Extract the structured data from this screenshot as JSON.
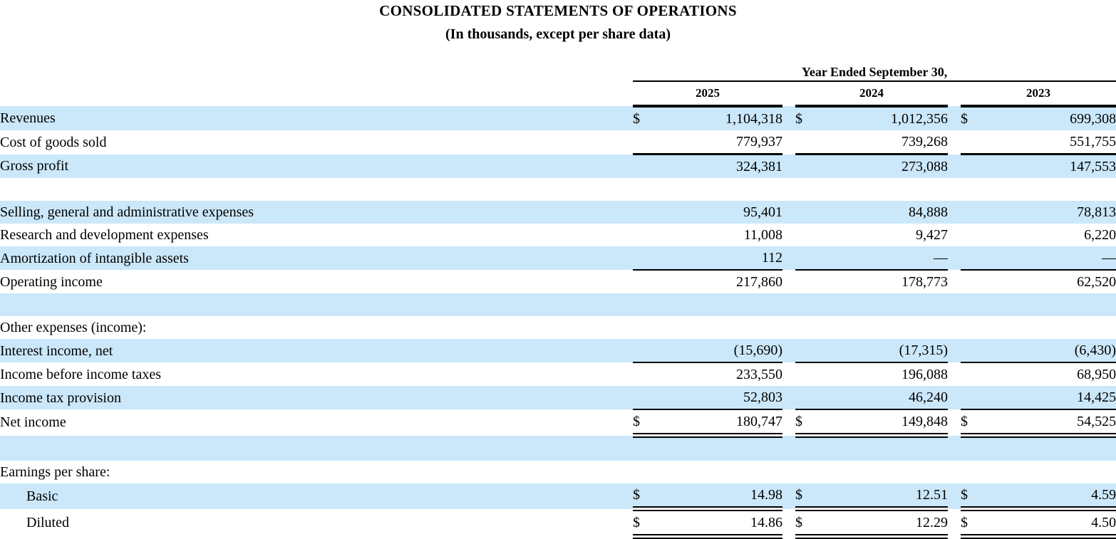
{
  "title": "CONSOLIDATED STATEMENTS OF OPERATIONS",
  "subtitle": "(In thousands, except per share data)",
  "currency_symbol": "$",
  "colors": {
    "row_highlight": "#CBE8FA",
    "rule_color": "#000000"
  },
  "table": {
    "period_header": "Year Ended September 30,",
    "years": [
      "2025",
      "2024",
      "2023"
    ],
    "rows": [
      {
        "label": "Revenues",
        "shade": "blue",
        "indent": false,
        "dollar": true,
        "values": [
          "1,104,318",
          "1,012,356",
          "699,308"
        ],
        "border": "none"
      },
      {
        "label": "Cost of goods sold",
        "shade": "white",
        "indent": false,
        "dollar": false,
        "values": [
          "779,937",
          "739,268",
          "551,755"
        ],
        "border": "thick"
      },
      {
        "label": "Gross profit",
        "shade": "blue",
        "indent": false,
        "dollar": false,
        "values": [
          "324,381",
          "273,088",
          "147,553"
        ],
        "border": "none"
      },
      {
        "spacer": true,
        "shade": "white"
      },
      {
        "label": "Selling, general and administrative expenses",
        "shade": "blue",
        "indent": false,
        "dollar": false,
        "values": [
          "95,401",
          "84,888",
          "78,813"
        ],
        "border": "none"
      },
      {
        "label": "Research and development expenses",
        "shade": "white",
        "indent": false,
        "dollar": false,
        "values": [
          "11,008",
          "9,427",
          "6,220"
        ],
        "border": "none"
      },
      {
        "label": "Amortization of intangible assets",
        "shade": "blue",
        "indent": false,
        "dollar": false,
        "values": [
          "112",
          "—",
          "—"
        ],
        "border": "thin"
      },
      {
        "label": "Operating income",
        "shade": "white",
        "indent": false,
        "dollar": false,
        "values": [
          "217,860",
          "178,773",
          "62,520"
        ],
        "border": "none"
      },
      {
        "spacer": true,
        "shade": "blue"
      },
      {
        "label": "Other expenses (income):",
        "shade": "white",
        "indent": false,
        "dollar": false,
        "values": null,
        "border": "none"
      },
      {
        "label": "Interest income, net",
        "shade": "blue",
        "indent": false,
        "dollar": false,
        "values": [
          "(15,690)",
          "(17,315)",
          "(6,430)"
        ],
        "border": "thin"
      },
      {
        "label": "Income before income taxes",
        "shade": "white",
        "indent": false,
        "dollar": false,
        "values": [
          "233,550",
          "196,088",
          "68,950"
        ],
        "border": "none"
      },
      {
        "label": "Income tax provision",
        "shade": "blue",
        "indent": false,
        "dollar": false,
        "values": [
          "52,803",
          "46,240",
          "14,425"
        ],
        "border": "thin"
      },
      {
        "label": "Net income",
        "shade": "white",
        "indent": false,
        "dollar": true,
        "values": [
          "180,747",
          "149,848",
          "54,525"
        ],
        "border": "double"
      },
      {
        "spacer": true,
        "shade": "blue"
      },
      {
        "label": "Earnings per share:",
        "shade": "white",
        "indent": false,
        "dollar": false,
        "values": null,
        "border": "none"
      },
      {
        "label": "Basic",
        "shade": "blue",
        "indent": true,
        "dollar": true,
        "values": [
          "14.98",
          "12.51",
          "4.59"
        ],
        "border": "double"
      },
      {
        "label": "Diluted",
        "shade": "white",
        "indent": true,
        "dollar": true,
        "values": [
          "14.86",
          "12.29",
          "4.50"
        ],
        "border": "double"
      }
    ]
  }
}
